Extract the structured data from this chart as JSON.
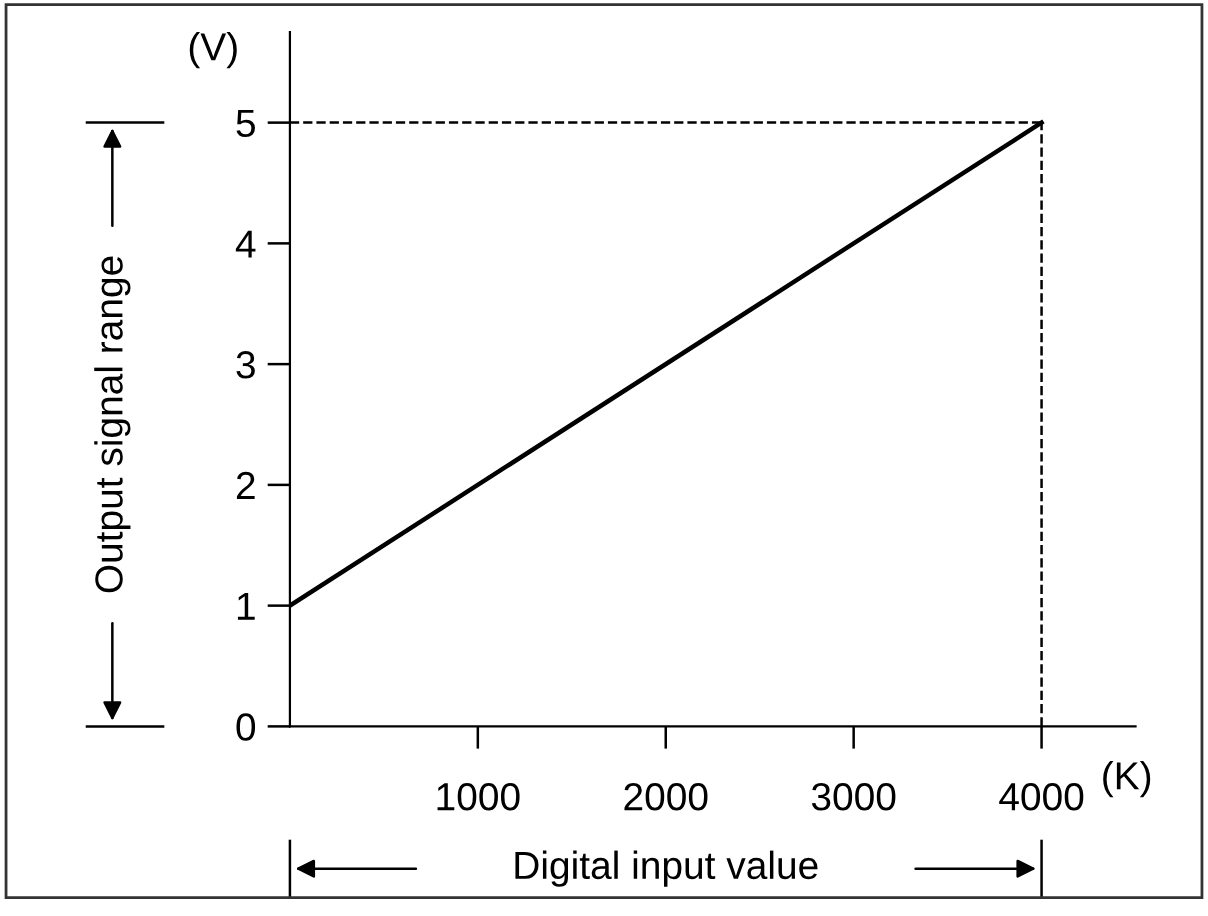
{
  "chart_data": {
    "type": "line",
    "xlabel": "Digital input value",
    "ylabel": "Output signal range",
    "x": [
      0,
      4000
    ],
    "series": [
      {
        "color": "#000000",
        "values": [
          1,
          5
        ]
      }
    ],
    "xlim": [
      0,
      4500
    ],
    "ylim": [
      0,
      5.75
    ],
    "xticks": [
      1000,
      2000,
      3000,
      4000
    ],
    "yticks": [
      0,
      1,
      2,
      3,
      4,
      5
    ],
    "ref_lines": [
      {
        "axis": "y",
        "value": 5,
        "line_style": "dashed",
        "color": "#000000"
      },
      {
        "axis": "x",
        "value": 4000,
        "line_style": "dashed",
        "color": "#000000"
      }
    ],
    "annotations": [
      "(V)",
      "(K)"
    ],
    "grid": false,
    "legend": false,
    "marker": "none",
    "line_style": "solid"
  }
}
